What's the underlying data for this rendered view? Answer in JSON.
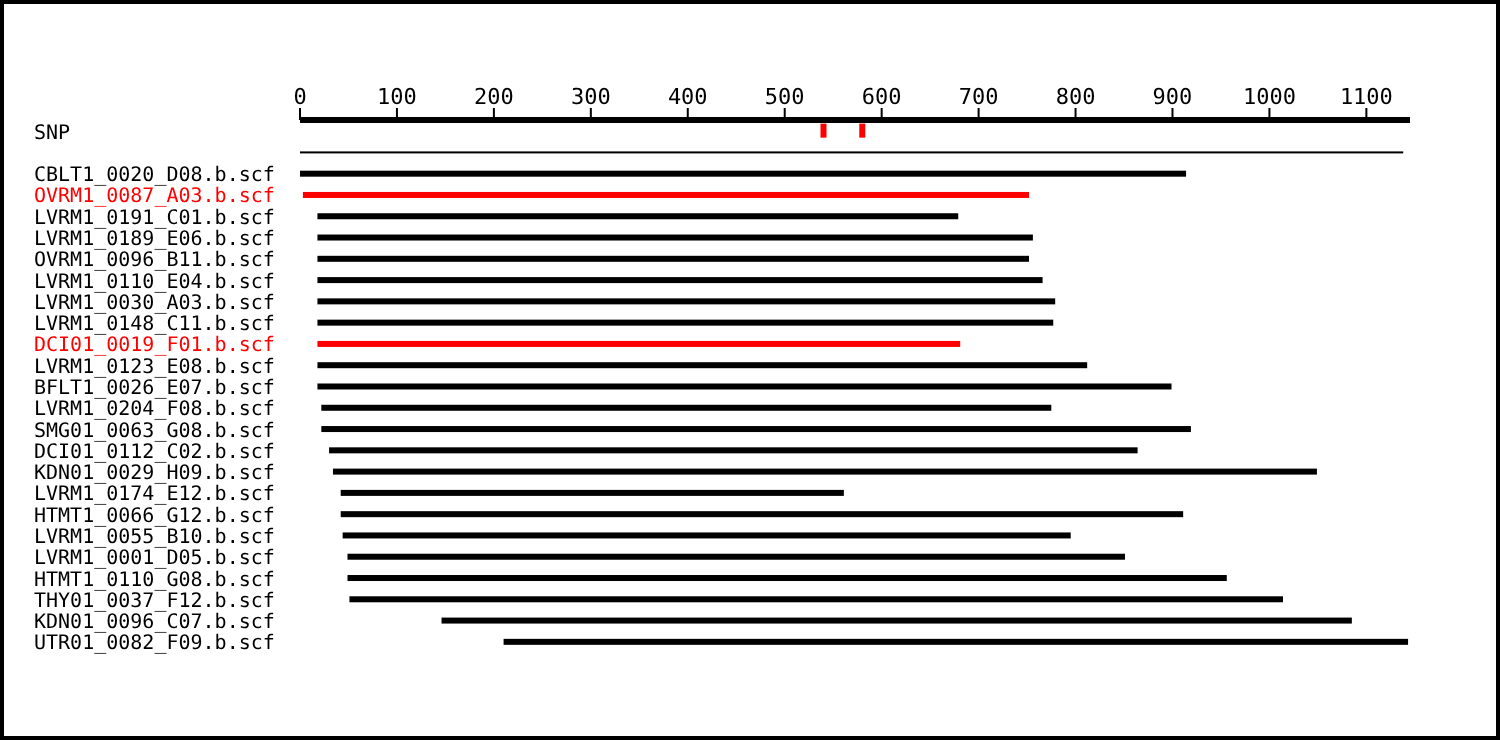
{
  "chart_data": {
    "type": "bar",
    "orientation": "horizontal",
    "categories": [
      "SNP",
      null,
      "CBLT1_0020_D08.b.scf",
      "OVRM1_0087_A03.b.scf",
      "LVRM1_0191_C01.b.scf",
      "LVRM1_0189_E06.b.scf",
      "OVRM1_0096_B11.b.scf",
      "LVRM1_0110_E04.b.scf",
      "LVRM1_0030_A03.b.scf",
      "LVRM1_0148_C11.b.scf",
      "DCI01_0019_F01.b.scf",
      "LVRM1_0123_E08.b.scf",
      "BFLT1_0026_E07.b.scf",
      "LVRM1_0204_F08.b.scf",
      "SMG01_0063_G08.b.scf",
      "DCI01_0112_C02.b.scf",
      "KDN01_0029_H09.b.scf",
      "LVRM1_0174_E12.b.scf",
      "HTMT1_0066_G12.b.scf",
      "LVRM1_0055_B10.b.scf",
      "LVRM1_0001_D05.b.scf",
      "HTMT1_0110_G08.b.scf",
      "THY01_0037_F12.b.scf",
      "KDN01_0096_C07.b.scf",
      "UTR01_0082_F09.b.scf"
    ],
    "base": [
      null,
      0,
      0,
      3,
      18,
      18,
      18,
      18,
      18,
      18,
      18,
      18,
      18,
      22,
      22,
      30,
      34,
      42,
      42,
      44,
      49,
      49,
      51,
      146,
      210
    ],
    "values": [
      null,
      1138,
      914,
      749,
      661,
      738,
      734,
      748,
      761,
      759,
      663,
      794,
      881,
      753,
      897,
      834,
      1015,
      519,
      869,
      751,
      802,
      907,
      963,
      939,
      933
    ],
    "colors": [
      "#000000",
      "#000000",
      "#000000",
      "#ff0000",
      "#000000",
      "#000000",
      "#000000",
      "#000000",
      "#000000",
      "#000000",
      "#ff0000",
      "#000000",
      "#000000",
      "#000000",
      "#000000",
      "#000000",
      "#000000",
      "#000000",
      "#000000",
      "#000000",
      "#000000",
      "#000000",
      "#000000",
      "#000000",
      "#000000"
    ],
    "series": [
      {
        "type": "scatter",
        "x": [
          "SNP",
          "SNP"
        ],
        "values": [
          540,
          580
        ],
        "color": "#ff0000",
        "marker": "square"
      }
    ],
    "xlim": [
      0,
      1145
    ],
    "xticks": [
      0,
      100,
      200,
      300,
      400,
      500,
      600,
      700,
      800,
      900,
      1000,
      1100
    ],
    "grid": false,
    "legend": false
  }
}
